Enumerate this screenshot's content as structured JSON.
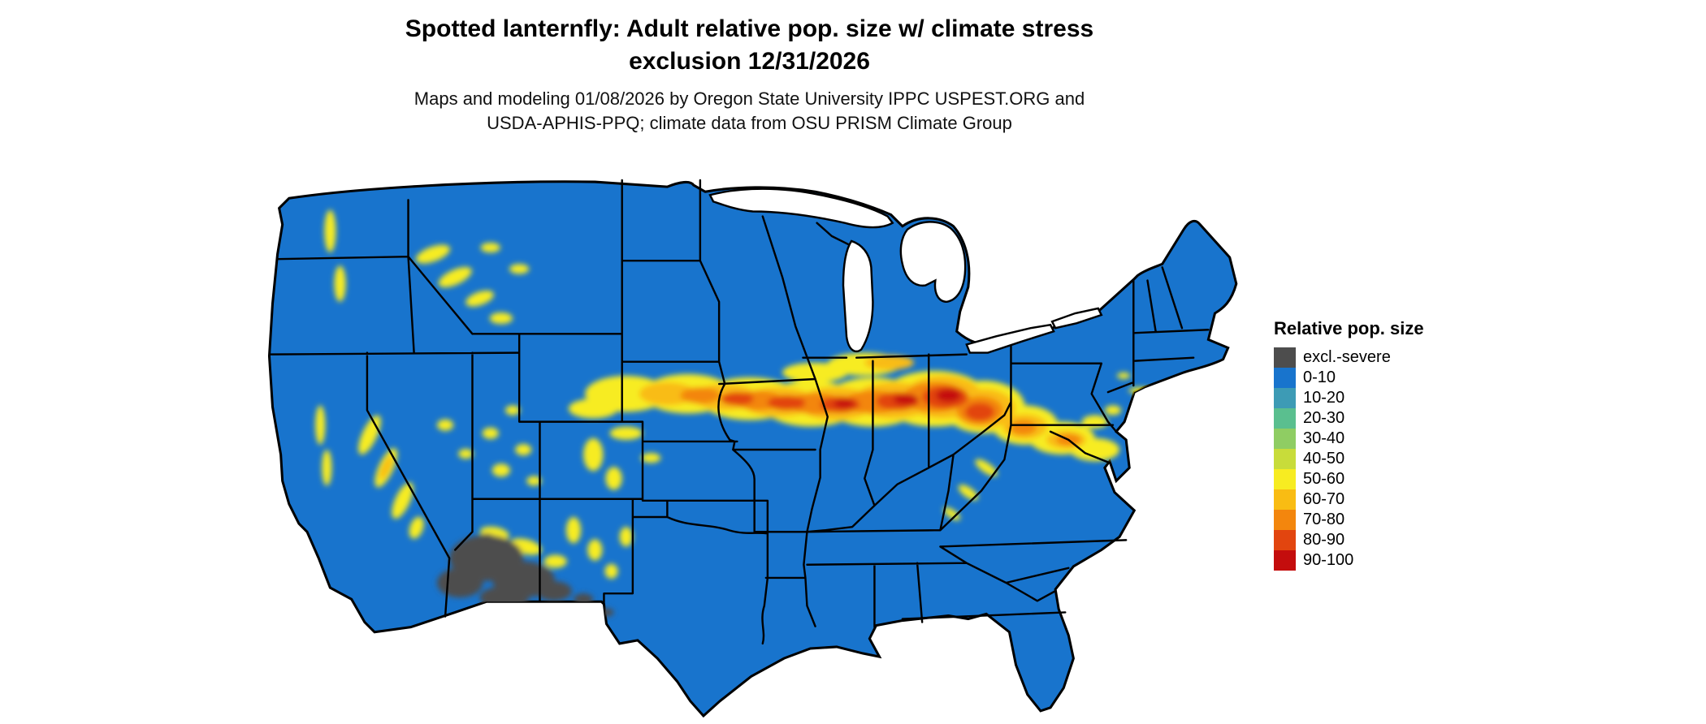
{
  "header": {
    "title_line1": "Spotted lanternfly: Adult relative pop. size w/ climate stress",
    "title_line2": "exclusion 12/31/2026",
    "subtitle_line1": "Maps and modeling 01/08/2026 by Oregon State University IPPC USPEST.ORG and",
    "subtitle_line2": "USDA-APHIS-PPQ; climate data from OSU PRISM Climate Group"
  },
  "map": {
    "region": "Contiguous United States",
    "base_fill_label": "0-10",
    "base_fill_color": "#1874CD",
    "water_color": "#FFFFFF",
    "high_population_band": "Great Plains through Midwest into Mid-Atlantic (Nebraska, Iowa, Illinois, Indiana, Ohio, Pennsylvania, Maryland)",
    "excluded_region": "southwestern Arizona and adjacent New Mexico (climate stress exclusion)"
  },
  "legend": {
    "title": "Relative pop. size",
    "items": [
      {
        "label": "excl.-severe",
        "color": "#4D4D4D"
      },
      {
        "label": "0-10",
        "color": "#1874CD"
      },
      {
        "label": "10-20",
        "color": "#3D9BB5"
      },
      {
        "label": "20-30",
        "color": "#5ABF8F"
      },
      {
        "label": "30-40",
        "color": "#8FCD63"
      },
      {
        "label": "40-50",
        "color": "#C8DC3A"
      },
      {
        "label": "50-60",
        "color": "#F7EC21"
      },
      {
        "label": "60-70",
        "color": "#F9BC13"
      },
      {
        "label": "70-80",
        "color": "#F3860D"
      },
      {
        "label": "80-90",
        "color": "#E2450F"
      },
      {
        "label": "90-100",
        "color": "#C40D0D"
      }
    ]
  }
}
